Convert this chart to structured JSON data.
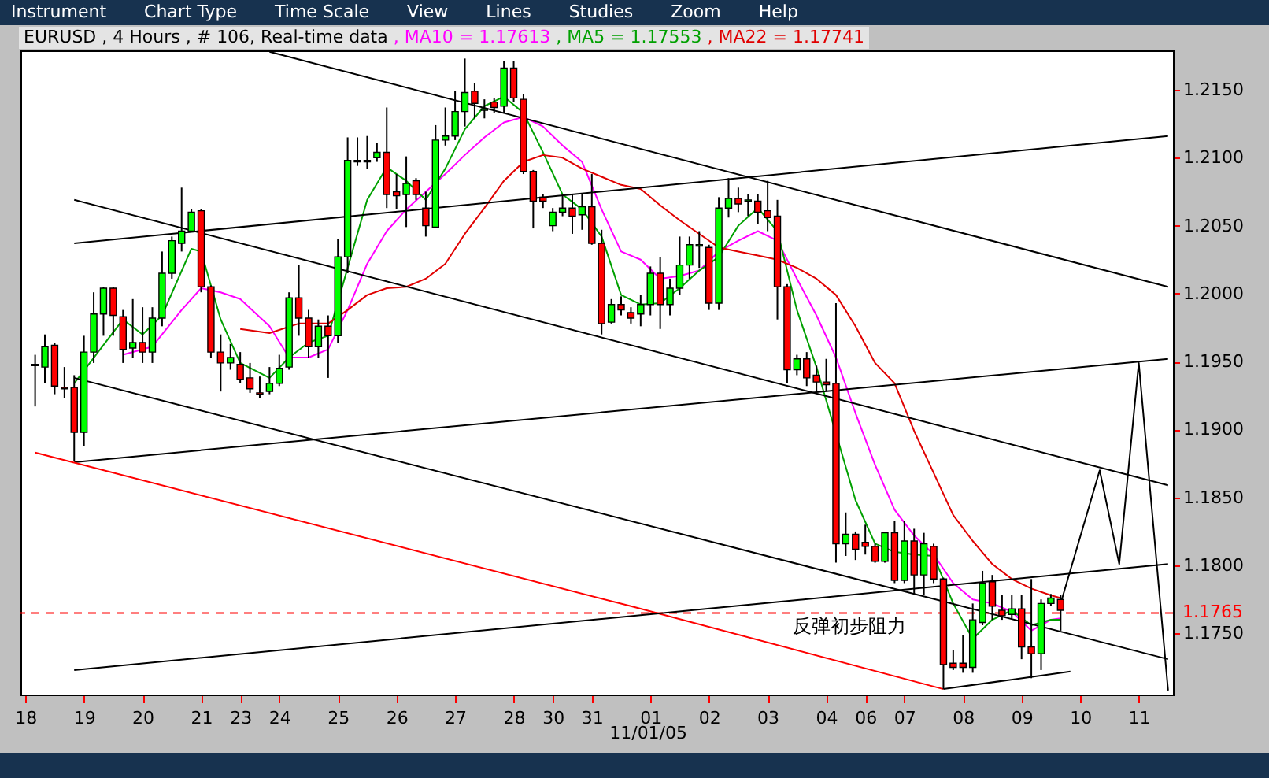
{
  "chart_data": {
    "type": "candlestick",
    "title": "EURUSD , 4 Hours , # 106, Real-time data",
    "categories": [
      "18",
      null,
      null,
      null,
      null,
      null,
      "19",
      null,
      null,
      null,
      null,
      null,
      "20",
      null,
      null,
      null,
      null,
      null,
      "21",
      null,
      null,
      null,
      "23",
      null,
      null,
      null,
      "24",
      null,
      null,
      null,
      null,
      null,
      "25",
      null,
      null,
      null,
      null,
      null,
      "26",
      null,
      null,
      null,
      null,
      null,
      "27",
      null,
      null,
      null,
      null,
      null,
      "28",
      null,
      null,
      null,
      "30",
      null,
      null,
      null,
      "31",
      null,
      null,
      null,
      null,
      null,
      "01",
      null,
      null,
      null,
      null,
      null,
      "02",
      null,
      null,
      null,
      null,
      null,
      "03",
      null,
      null,
      null,
      null,
      null,
      "04",
      null,
      null,
      null,
      "06",
      null,
      null,
      null,
      "07",
      null,
      null,
      null,
      null,
      null,
      "08",
      null,
      null,
      null,
      null,
      null,
      "09",
      null,
      null,
      null,
      null,
      null,
      "10",
      null,
      null,
      null,
      null,
      null,
      "11",
      null,
      null,
      null
    ],
    "ohlc": [
      null,
      [
        1.1948,
        1.1955,
        1.1917,
        1.1947
      ],
      [
        1.1946,
        1.197,
        1.1934,
        1.1961
      ],
      [
        1.1962,
        1.1964,
        1.1926,
        1.1932
      ],
      [
        1.1931,
        1.1946,
        1.1923,
        1.193
      ],
      [
        1.1931,
        1.194,
        1.1877,
        1.1898
      ],
      [
        1.1898,
        1.1969,
        1.1888,
        1.1957
      ],
      [
        1.1957,
        1.2001,
        1.1949,
        1.1985
      ],
      [
        1.1985,
        1.2005,
        1.1969,
        1.2004
      ],
      [
        1.2004,
        1.2005,
        1.1969,
        1.1984
      ],
      [
        1.1983,
        1.1988,
        1.1949,
        1.1959
      ],
      [
        1.196,
        1.1996,
        1.1953,
        1.1964
      ],
      [
        1.1964,
        1.199,
        1.1949,
        1.1957
      ],
      [
        1.1957,
        1.199,
        1.1949,
        1.1982
      ],
      [
        1.1982,
        1.2031,
        1.1976,
        1.2015
      ],
      [
        1.2015,
        1.2042,
        1.2011,
        1.2039
      ],
      [
        1.2037,
        1.2078,
        1.2031,
        1.2046
      ],
      [
        1.2046,
        1.2062,
        1.2046,
        1.206
      ],
      [
        1.2061,
        1.2062,
        1.2001,
        1.2005
      ],
      [
        1.2005,
        1.2006,
        1.1953,
        1.1957
      ],
      [
        1.1957,
        1.197,
        1.1928,
        1.1949
      ],
      [
        1.1949,
        1.1963,
        1.1944,
        1.1953
      ],
      [
        1.1948,
        1.1957,
        1.1934,
        1.1937
      ],
      [
        1.1938,
        1.1949,
        1.1927,
        1.193
      ],
      [
        1.1927,
        1.1939,
        1.1923,
        1.1926
      ],
      [
        1.1928,
        1.1946,
        1.1926,
        1.1934
      ],
      [
        1.1934,
        1.1955,
        1.1932,
        1.1945
      ],
      [
        1.1946,
        1.2001,
        1.1944,
        1.1997
      ],
      [
        1.1997,
        1.2021,
        1.1969,
        1.1982
      ],
      [
        1.1982,
        1.1988,
        1.1953,
        1.1961
      ],
      [
        1.1961,
        1.1981,
        1.1953,
        1.1976
      ],
      [
        1.1976,
        1.1984,
        1.1938,
        1.1969
      ],
      [
        1.1969,
        1.204,
        1.1964,
        1.2027
      ],
      [
        1.2027,
        1.2115,
        1.2015,
        1.2098
      ],
      [
        1.2097,
        1.2115,
        1.2094,
        1.2098
      ],
      [
        1.2098,
        1.2116,
        1.2092,
        1.2097
      ],
      [
        1.21,
        1.2111,
        1.2097,
        1.2104
      ],
      [
        1.2104,
        1.2137,
        1.2063,
        1.2073
      ],
      [
        1.2075,
        1.2088,
        1.2062,
        1.2072
      ],
      [
        1.2073,
        1.2101,
        1.2049,
        1.2081
      ],
      [
        1.2083,
        1.2085,
        1.2069,
        1.2073
      ],
      [
        1.2063,
        1.2075,
        1.2042,
        1.205
      ],
      [
        1.2049,
        1.2124,
        1.2049,
        1.2113
      ],
      [
        1.2113,
        1.2137,
        1.2109,
        1.2116
      ],
      [
        1.2116,
        1.2149,
        1.2113,
        1.2134
      ],
      [
        1.2134,
        1.2173,
        1.2123,
        1.2148
      ],
      [
        1.2149,
        1.2155,
        1.2129,
        1.214
      ],
      [
        1.2135,
        1.2143,
        1.2129,
        1.2136
      ],
      [
        1.2141,
        1.2144,
        1.2133,
        1.2137
      ],
      [
        1.2138,
        1.2171,
        1.2133,
        1.2166
      ],
      [
        1.2166,
        1.2171,
        1.2141,
        1.2144
      ],
      [
        1.2143,
        1.2147,
        1.2088,
        1.209
      ],
      [
        1.209,
        1.2091,
        1.2048,
        1.2068
      ],
      [
        1.2071,
        1.2073,
        1.2063,
        1.2068
      ],
      [
        1.205,
        1.2063,
        1.2046,
        1.206
      ],
      [
        1.206,
        1.2073,
        1.2057,
        1.2063
      ],
      [
        1.2063,
        1.2073,
        1.2044,
        1.2057
      ],
      [
        1.2058,
        1.2073,
        1.2047,
        1.2064
      ],
      [
        1.2064,
        1.2088,
        1.2036,
        1.2037
      ],
      [
        1.2037,
        1.2047,
        1.197,
        1.1978
      ],
      [
        1.1979,
        1.1996,
        1.1978,
        1.1992
      ],
      [
        1.1992,
        1.1998,
        1.1984,
        1.1988
      ],
      [
        1.1986,
        1.199,
        1.1978,
        1.1982
      ],
      [
        1.1985,
        1.1999,
        1.1976,
        1.1992
      ],
      [
        1.1992,
        1.202,
        1.1984,
        1.2015
      ],
      [
        1.2015,
        1.2027,
        1.1974,
        1.1992
      ],
      [
        1.1992,
        1.2011,
        1.1984,
        1.2004
      ],
      [
        1.2004,
        1.2042,
        1.1999,
        1.2021
      ],
      [
        1.2021,
        1.2042,
        1.2011,
        1.2036
      ],
      [
        1.2035,
        1.2046,
        1.2019,
        1.2036
      ],
      [
        1.2034,
        1.2036,
        1.1988,
        1.1993
      ],
      [
        1.1993,
        1.2071,
        1.1988,
        1.2063
      ],
      [
        1.2063,
        1.2085,
        1.2056,
        1.207
      ],
      [
        1.207,
        1.2078,
        1.206,
        1.2066
      ],
      [
        1.2068,
        1.2073,
        1.2057,
        1.2069
      ],
      [
        1.2068,
        1.2073,
        1.2051,
        1.206
      ],
      [
        1.2061,
        1.2083,
        1.2046,
        1.2056
      ],
      [
        1.2057,
        1.2069,
        1.1981,
        1.2005
      ],
      [
        1.2005,
        1.2007,
        1.1934,
        1.1944
      ],
      [
        1.1944,
        1.1955,
        1.194,
        1.1952
      ],
      [
        1.1952,
        1.1957,
        1.1932,
        1.1938
      ],
      [
        1.194,
        1.1947,
        1.1928,
        1.1935
      ],
      [
        1.1935,
        1.1952,
        1.1928,
        1.1933
      ],
      [
        1.1934,
        1.1993,
        1.1802,
        1.1816
      ],
      [
        1.1816,
        1.1839,
        1.1807,
        1.1823
      ],
      [
        1.1823,
        1.1825,
        1.1804,
        1.1812
      ],
      [
        1.1817,
        1.183,
        1.1808,
        1.1814
      ],
      [
        1.1814,
        1.1816,
        1.1802,
        1.1803
      ],
      [
        1.1803,
        1.1825,
        1.1802,
        1.1824
      ],
      [
        1.1824,
        1.1833,
        1.1787,
        1.1789
      ],
      [
        1.1789,
        1.1833,
        1.1787,
        1.1818
      ],
      [
        1.1818,
        1.1827,
        1.1778,
        1.1793
      ],
      [
        1.1793,
        1.1824,
        1.1778,
        1.1816
      ],
      [
        1.1814,
        1.1816,
        1.1787,
        1.179
      ],
      [
        1.179,
        1.1791,
        1.1709,
        1.1727
      ],
      [
        1.1728,
        1.1738,
        1.1723,
        1.1725
      ],
      [
        1.1728,
        1.1749,
        1.1721,
        1.1725
      ],
      [
        1.1725,
        1.1772,
        1.1721,
        1.176
      ],
      [
        1.1758,
        1.1796,
        1.1756,
        1.1787
      ],
      [
        1.1788,
        1.1793,
        1.176,
        1.177
      ],
      [
        1.1767,
        1.1778,
        1.176,
        1.1763
      ],
      [
        1.1764,
        1.1778,
        1.1761,
        1.1768
      ],
      [
        1.1768,
        1.1778,
        1.1731,
        1.174
      ],
      [
        1.174,
        1.179,
        1.1717,
        1.1735
      ],
      [
        1.1735,
        1.1775,
        1.1723,
        1.1772
      ],
      [
        1.1772,
        1.1779,
        1.177,
        1.1776
      ],
      [
        1.1775,
        1.1778,
        1.1752,
        1.1767
      ],
      null,
      null,
      null,
      null,
      null,
      null,
      null,
      null,
      null,
      null,
      null
    ],
    "colors": [
      null,
      "#ff0000",
      "#00ff00",
      "#ff0000",
      "#ff0000",
      "#ff0000",
      "#00ff00",
      "#00ff00",
      "#00ff00",
      "#ff0000",
      "#ff0000",
      "#00ff00",
      "#ff0000",
      "#00ff00",
      "#00ff00",
      "#00ff00",
      "#00ff00",
      "#00ff00",
      "#ff0000",
      "#ff0000",
      "#ff0000",
      "#00ff00",
      "#ff0000",
      "#ff0000",
      "#ff0000",
      "#00ff00",
      "#00ff00",
      "#00ff00",
      "#ff0000",
      "#ff0000",
      "#00ff00",
      "#ff0000",
      "#00ff00",
      "#00ff00",
      "#00ff00",
      "#ff0000",
      "#00ff00",
      "#ff0000",
      "#ff0000",
      "#00ff00",
      "#ff0000",
      "#ff0000",
      "#00ff00",
      "#00ff00",
      "#00ff00",
      "#00ff00",
      "#ff0000",
      "#00ff00",
      "#ff0000",
      "#00ff00",
      "#ff0000",
      "#ff0000",
      "#ff0000",
      "#ff0000",
      "#00ff00",
      "#00ff00",
      "#ff0000",
      "#00ff00",
      "#ff0000",
      "#ff0000",
      "#00ff00",
      "#ff0000",
      "#ff0000",
      "#00ff00",
      "#00ff00",
      "#ff0000",
      "#00ff00",
      "#00ff00",
      "#00ff00",
      "#00ff00",
      "#ff0000",
      "#00ff00",
      "#00ff00",
      "#ff0000",
      "#00ff00",
      "#ff0000",
      "#ff0000",
      "#ff0000",
      "#ff0000",
      "#00ff00",
      "#ff0000",
      "#ff0000",
      "#ff0000",
      "#ff0000",
      "#00ff00",
      "#ff0000",
      "#ff0000",
      "#ff0000",
      "#00ff00",
      "#ff0000",
      "#00ff00",
      "#ff0000",
      "#00ff00",
      "#ff0000",
      "#ff0000",
      "#ff0000",
      "#ff0000",
      "#00ff00",
      "#00ff00",
      "#ff0000",
      "#ff0000",
      "#00ff00",
      "#ff0000",
      "#ff0000",
      "#00ff00",
      "#00ff00",
      "#ff0000",
      null,
      null,
      null,
      null,
      null,
      null,
      null,
      null,
      null,
      null,
      null
    ],
    "series": [
      {
        "type": "line",
        "name": ", MA10 = 1.17613",
        "color": "#ff00ff",
        "values": [
          null,
          null,
          null,
          null,
          null,
          null,
          null,
          null,
          null,
          null,
          1.1955,
          null,
          null,
          1.1961,
          null,
          null,
          1.1988,
          null,
          1.2004,
          null,
          1.2001,
          null,
          1.1996,
          null,
          null,
          1.1976,
          null,
          1.1953,
          null,
          1.1953,
          null,
          1.1959,
          null,
          1.1988,
          null,
          1.2022,
          null,
          1.2046,
          null,
          1.2062,
          null,
          1.2075,
          null,
          1.2088,
          null,
          1.2102,
          null,
          1.2115,
          null,
          1.2126,
          null,
          1.213,
          null,
          1.2123,
          null,
          1.2109,
          null,
          1.2097,
          null,
          1.2062,
          null,
          1.2031,
          null,
          1.2025,
          null,
          1.2011,
          null,
          1.2013,
          null,
          1.2017,
          null,
          1.2031,
          null,
          1.2039,
          null,
          1.2046,
          null,
          1.2039,
          null,
          1.2011,
          null,
          1.1984,
          null,
          1.1953,
          null,
          1.1912,
          null,
          1.1874,
          null,
          1.1841,
          null,
          1.1822,
          null,
          1.1808,
          null,
          1.1787,
          null,
          1.1775,
          null,
          1.1772,
          null,
          1.1766,
          null,
          1.1752,
          null,
          1.176,
          1.1761,
          null,
          null,
          null,
          null,
          null,
          null,
          null,
          null,
          null,
          null,
          null
        ]
      },
      {
        "type": "line",
        "name": ", MA5 = 1.17553",
        "color": "#00a000",
        "values": [
          null,
          null,
          null,
          null,
          null,
          1.1934,
          null,
          null,
          null,
          null,
          1.1981,
          null,
          1.197,
          null,
          1.1984,
          null,
          null,
          1.2033,
          1.2031,
          null,
          1.1981,
          null,
          1.1949,
          null,
          null,
          1.1938,
          null,
          1.1953,
          null,
          1.1964,
          null,
          1.1969,
          null,
          1.2019,
          null,
          1.2069,
          null,
          1.2093,
          null,
          1.2083,
          null,
          1.2069,
          null,
          1.2092,
          null,
          1.2121,
          null,
          1.2138,
          null,
          1.2145,
          null,
          1.2133,
          null,
          1.2104,
          null,
          1.2073,
          null,
          1.2062,
          null,
          1.2042,
          null,
          1.1999,
          null,
          1.1992,
          null,
          1.1993,
          null,
          1.2004,
          null,
          1.2017,
          null,
          1.2027,
          null,
          1.205,
          null,
          1.2063,
          null,
          1.2046,
          null,
          1.1988,
          null,
          1.1946,
          null,
          null,
          null,
          1.1848,
          null,
          1.1816,
          null,
          1.181,
          null,
          1.1808,
          null,
          1.1807,
          null,
          1.1772,
          null,
          1.1746,
          null,
          1.176,
          null,
          1.1767,
          null,
          1.1756,
          null,
          1.176,
          1.176,
          null,
          null,
          null,
          null,
          null,
          null,
          null,
          null,
          null,
          null,
          null
        ]
      },
      {
        "type": "line",
        "name": ", MA22 = 1.17741",
        "color": "#e00000",
        "values": [
          null,
          null,
          null,
          null,
          null,
          null,
          null,
          null,
          null,
          null,
          null,
          null,
          null,
          null,
          null,
          null,
          null,
          null,
          null,
          null,
          null,
          null,
          1.1974,
          null,
          null,
          1.1971,
          null,
          null,
          1.1978,
          null,
          null,
          1.1978,
          null,
          1.1988,
          null,
          1.1999,
          null,
          1.2004,
          null,
          1.2005,
          null,
          1.2011,
          null,
          1.2022,
          null,
          1.2044,
          null,
          1.2063,
          null,
          1.2083,
          null,
          1.2097,
          null,
          1.2102,
          null,
          1.21,
          null,
          1.2092,
          null,
          1.2086,
          null,
          1.208,
          null,
          1.2077,
          null,
          1.2065,
          null,
          1.2054,
          null,
          1.2044,
          null,
          1.2034,
          null,
          1.2031,
          null,
          1.2028,
          null,
          1.2025,
          null,
          1.2019,
          null,
          1.2011,
          null,
          1.1999,
          null,
          1.1976,
          null,
          1.1949,
          null,
          1.1934,
          null,
          1.1899,
          null,
          1.1868,
          null,
          1.1837,
          null,
          1.1818,
          null,
          1.1801,
          null,
          1.179,
          null,
          1.1783,
          null,
          1.1778,
          1.1776,
          null,
          null,
          null,
          null,
          null,
          null,
          null,
          null,
          null,
          null,
          null
        ]
      },
      {
        "type": "line",
        "color": "#000000",
        "values": [
          null,
          null,
          null,
          null,
          null,
          null,
          null,
          null,
          null,
          null,
          null,
          null,
          null,
          null,
          null,
          null,
          null,
          null,
          null,
          null,
          null,
          null,
          null,
          null,
          null,
          1.2178,
          null,
          null,
          null,
          null,
          null,
          null,
          null,
          null,
          null,
          null,
          null,
          null,
          null,
          null,
          null,
          null,
          null,
          null,
          null,
          null,
          null,
          null,
          null,
          null,
          null,
          null,
          null,
          null,
          null,
          null,
          null,
          null,
          null,
          null,
          null,
          null,
          null,
          null,
          null,
          null,
          null,
          null,
          null,
          null,
          null,
          null,
          null,
          null,
          null,
          null,
          null,
          null,
          null,
          null,
          null,
          null,
          null,
          null,
          null,
          null,
          null,
          null,
          null,
          null,
          null,
          null,
          null,
          null,
          null,
          null,
          null,
          null,
          null,
          null,
          null,
          null,
          null,
          null,
          null,
          null,
          null,
          null,
          null,
          null,
          null,
          null,
          null,
          null,
          null,
          null,
          null,
          1.2005
        ]
      },
      {
        "type": "line",
        "color": "#000000",
        "values": [
          null,
          null,
          null,
          null,
          null,
          1.2037,
          null,
          null,
          null,
          null,
          null,
          null,
          null,
          null,
          null,
          null,
          null,
          null,
          null,
          null,
          null,
          null,
          null,
          null,
          null,
          null,
          null,
          null,
          null,
          null,
          null,
          null,
          null,
          null,
          null,
          null,
          null,
          null,
          null,
          null,
          null,
          null,
          null,
          null,
          null,
          null,
          null,
          null,
          null,
          null,
          null,
          null,
          null,
          null,
          null,
          null,
          null,
          null,
          null,
          null,
          null,
          null,
          null,
          null,
          null,
          null,
          null,
          null,
          null,
          null,
          null,
          null,
          null,
          null,
          null,
          null,
          null,
          null,
          null,
          null,
          null,
          null,
          null,
          null,
          null,
          null,
          null,
          null,
          null,
          null,
          null,
          null,
          null,
          null,
          null,
          null,
          null,
          null,
          null,
          null,
          null,
          null,
          null,
          null,
          null,
          null,
          null,
          null,
          null,
          null,
          null,
          null,
          null,
          null,
          null,
          null,
          null,
          1.2116
        ]
      },
      {
        "type": "line",
        "color": "#000000",
        "values": [
          null,
          null,
          null,
          null,
          null,
          1.2069,
          null,
          null,
          null,
          null,
          null,
          null,
          null,
          null,
          null,
          null,
          null,
          null,
          null,
          null,
          null,
          null,
          null,
          null,
          null,
          null,
          null,
          null,
          null,
          null,
          null,
          null,
          null,
          null,
          null,
          null,
          null,
          null,
          null,
          null,
          null,
          null,
          null,
          null,
          null,
          null,
          null,
          null,
          null,
          null,
          null,
          null,
          null,
          null,
          null,
          null,
          null,
          null,
          null,
          null,
          null,
          null,
          null,
          null,
          null,
          null,
          null,
          null,
          null,
          null,
          null,
          null,
          null,
          null,
          null,
          null,
          null,
          null,
          null,
          null,
          null,
          null,
          null,
          null,
          null,
          null,
          null,
          null,
          null,
          null,
          null,
          null,
          null,
          null,
          null,
          null,
          null,
          null,
          null,
          null,
          null,
          null,
          null,
          null,
          null,
          null,
          null,
          null,
          null,
          null,
          null,
          null,
          null,
          null,
          null,
          null,
          null,
          1.1859
        ]
      },
      {
        "type": "line",
        "color": "#000000",
        "values": [
          null,
          null,
          null,
          null,
          null,
          1.1876,
          null,
          null,
          null,
          null,
          null,
          null,
          null,
          null,
          null,
          null,
          null,
          null,
          null,
          null,
          null,
          null,
          null,
          null,
          null,
          null,
          null,
          null,
          null,
          null,
          null,
          null,
          null,
          null,
          null,
          null,
          null,
          null,
          null,
          null,
          null,
          null,
          null,
          null,
          null,
          null,
          null,
          null,
          null,
          null,
          null,
          null,
          null,
          null,
          null,
          null,
          null,
          null,
          null,
          null,
          null,
          null,
          null,
          null,
          null,
          null,
          null,
          null,
          null,
          null,
          null,
          null,
          null,
          null,
          null,
          null,
          null,
          null,
          null,
          null,
          null,
          null,
          null,
          null,
          null,
          null,
          null,
          null,
          null,
          null,
          null,
          null,
          null,
          null,
          null,
          null,
          null,
          null,
          null,
          null,
          null,
          null,
          null,
          null,
          null,
          null,
          null,
          null,
          null,
          null,
          null,
          null,
          null,
          null,
          null,
          null,
          null,
          1.1952
        ]
      },
      {
        "type": "line",
        "color": "#000000",
        "values": [
          null,
          null,
          null,
          null,
          null,
          1.1938,
          null,
          null,
          null,
          null,
          null,
          null,
          null,
          null,
          null,
          null,
          null,
          null,
          null,
          null,
          null,
          null,
          null,
          null,
          null,
          null,
          null,
          null,
          null,
          null,
          null,
          null,
          null,
          null,
          null,
          null,
          null,
          null,
          null,
          null,
          null,
          null,
          null,
          null,
          null,
          null,
          null,
          null,
          null,
          null,
          null,
          null,
          null,
          null,
          null,
          null,
          null,
          null,
          null,
          null,
          null,
          null,
          null,
          null,
          null,
          null,
          null,
          null,
          null,
          null,
          null,
          null,
          null,
          null,
          null,
          null,
          null,
          null,
          null,
          null,
          null,
          null,
          null,
          null,
          null,
          null,
          null,
          null,
          null,
          null,
          null,
          null,
          null,
          null,
          null,
          null,
          null,
          null,
          null,
          null,
          null,
          null,
          null,
          null,
          null,
          null,
          null,
          null,
          null,
          null,
          null,
          null,
          null,
          null,
          null,
          null,
          null,
          1.1731
        ]
      },
      {
        "type": "line",
        "color": "#ff0000",
        "values": [
          null,
          1.1883,
          null,
          null,
          null,
          null,
          null,
          null,
          null,
          null,
          null,
          null,
          null,
          null,
          null,
          null,
          null,
          null,
          null,
          null,
          null,
          null,
          null,
          null,
          null,
          null,
          null,
          null,
          null,
          null,
          null,
          null,
          null,
          null,
          null,
          null,
          null,
          null,
          null,
          null,
          null,
          null,
          null,
          null,
          null,
          null,
          null,
          null,
          null,
          null,
          null,
          null,
          null,
          null,
          null,
          null,
          null,
          null,
          null,
          null,
          null,
          null,
          1.177,
          null,
          null,
          null,
          null,
          null,
          null,
          null,
          null,
          null,
          null,
          null,
          null,
          null,
          null,
          null,
          null,
          null,
          null,
          null,
          null,
          null,
          null,
          null,
          null,
          null,
          null,
          null,
          null,
          null,
          null,
          null,
          1.1709,
          null,
          null,
          null,
          null,
          null,
          null,
          null,
          null,
          null,
          null,
          null,
          null,
          null,
          null,
          null,
          null,
          null,
          null,
          null,
          null,
          null,
          null,
          null
        ]
      },
      {
        "type": "line",
        "color": "#000000",
        "values": [
          null,
          null,
          null,
          null,
          null,
          1.1723,
          null,
          null,
          null,
          null,
          null,
          null,
          null,
          null,
          null,
          null,
          null,
          null,
          null,
          null,
          null,
          null,
          null,
          null,
          null,
          null,
          null,
          null,
          null,
          null,
          null,
          null,
          null,
          null,
          null,
          null,
          null,
          null,
          null,
          null,
          null,
          null,
          null,
          null,
          null,
          null,
          null,
          null,
          null,
          null,
          null,
          null,
          null,
          null,
          null,
          null,
          null,
          null,
          null,
          null,
          null,
          null,
          null,
          null,
          null,
          null,
          null,
          null,
          null,
          null,
          null,
          null,
          null,
          null,
          null,
          null,
          null,
          null,
          null,
          null,
          null,
          null,
          null,
          null,
          null,
          null,
          null,
          null,
          null,
          null,
          null,
          null,
          null,
          null,
          null,
          null,
          null,
          null,
          null,
          null,
          null,
          null,
          null,
          null,
          null,
          null,
          null,
          null,
          null,
          null,
          null,
          null,
          null,
          null,
          null,
          null,
          null,
          1.1801
        ]
      },
      {
        "type": "line",
        "color": "#000000",
        "values": [
          null,
          null,
          null,
          null,
          null,
          null,
          null,
          null,
          null,
          null,
          null,
          null,
          null,
          null,
          null,
          null,
          null,
          null,
          null,
          null,
          null,
          null,
          null,
          null,
          null,
          null,
          null,
          null,
          null,
          null,
          null,
          null,
          null,
          null,
          null,
          null,
          null,
          null,
          null,
          null,
          null,
          null,
          null,
          null,
          null,
          null,
          null,
          null,
          null,
          null,
          null,
          null,
          null,
          null,
          null,
          null,
          null,
          null,
          null,
          null,
          null,
          null,
          null,
          null,
          null,
          null,
          null,
          null,
          null,
          null,
          null,
          null,
          null,
          null,
          null,
          null,
          null,
          null,
          null,
          null,
          null,
          null,
          null,
          null,
          null,
          null,
          null,
          null,
          null,
          null,
          null,
          null,
          null,
          null,
          1.1709,
          null,
          null,
          null,
          null,
          null,
          null,
          null,
          null,
          null,
          null,
          null,
          null,
          1.1722,
          null,
          null,
          null,
          null,
          null,
          null,
          null,
          null,
          null,
          null
        ]
      },
      {
        "type": "line",
        "color": "#000000",
        "values": [
          null,
          null,
          null,
          null,
          null,
          null,
          null,
          null,
          null,
          null,
          null,
          null,
          null,
          null,
          null,
          null,
          null,
          null,
          null,
          null,
          null,
          null,
          null,
          null,
          null,
          null,
          null,
          null,
          null,
          null,
          null,
          null,
          null,
          null,
          null,
          null,
          null,
          null,
          null,
          null,
          null,
          null,
          null,
          null,
          null,
          null,
          null,
          null,
          null,
          null,
          null,
          null,
          null,
          null,
          null,
          null,
          null,
          null,
          null,
          null,
          null,
          null,
          null,
          null,
          null,
          null,
          null,
          null,
          null,
          null,
          null,
          null,
          null,
          null,
          null,
          null,
          null,
          null,
          null,
          null,
          null,
          null,
          null,
          null,
          null,
          null,
          null,
          null,
          null,
          null,
          null,
          null,
          null,
          null,
          null,
          null,
          null,
          null,
          null,
          null,
          null,
          null,
          null,
          null,
          null,
          null,
          1.1772,
          null,
          null,
          null,
          1.187,
          null,
          1.1801,
          null,
          1.1949,
          null,
          null,
          1.1708
        ]
      }
    ],
    "ylim": [
      1.1705,
      1.2179
    ],
    "yticks": [
      {
        "value": 1.215,
        "label": "1.2150"
      },
      {
        "value": 1.21,
        "label": "1.2100"
      },
      {
        "value": 1.205,
        "label": "1.2050"
      },
      {
        "value": 1.2,
        "label": "1.2000"
      },
      {
        "value": 1.195,
        "label": "1.1950"
      },
      {
        "value": 1.19,
        "label": "1.1900"
      },
      {
        "value": 1.185,
        "label": "1.1850"
      },
      {
        "value": 1.18,
        "label": "1.1800"
      },
      {
        "value": 1.175,
        "label": "1.1750"
      }
    ],
    "ref_lines": [
      {
        "axis": "y",
        "value": 1.1765,
        "label": "1.1765",
        "color": "#ff0000",
        "line_style": "dashed"
      }
    ],
    "annotations": [
      "Instrument",
      "Chart Type",
      "Time Scale",
      "View",
      "Lines",
      "Studies",
      "Zoom",
      "Help",
      "11/01/05",
      {
        "text": "反弹初步阻力",
        "x": "03",
        "y": 1.1775
      }
    ],
    "legend": "top",
    "grid": false
  }
}
